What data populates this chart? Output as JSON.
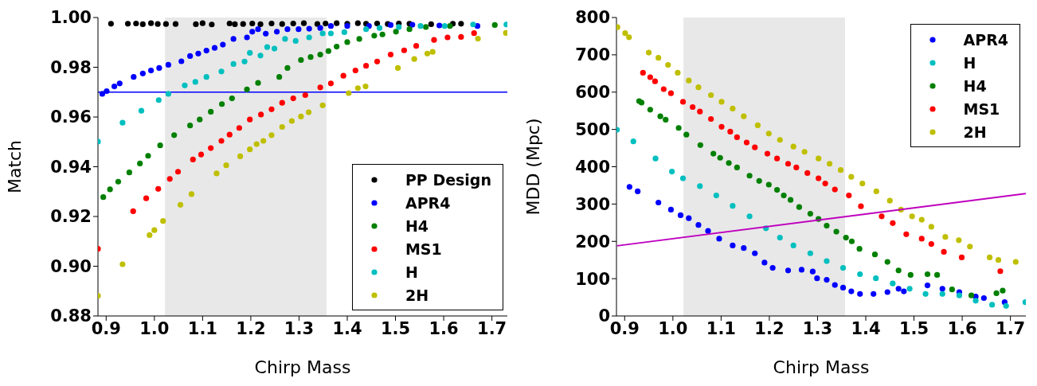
{
  "chart_data": [
    {
      "type": "scatter",
      "xlabel": "Chirp Mass",
      "ylabel": "Match",
      "marker": "circle",
      "legend": "bottom right",
      "grid": false,
      "xlim": [
        0.883,
        1.732
      ],
      "ylim": [
        0.88,
        1.0
      ],
      "xticks": [
        {
          "value": 0.9,
          "label": "0.9"
        },
        {
          "value": 1.0,
          "label": "1.0"
        },
        {
          "value": 1.1,
          "label": "1.1"
        },
        {
          "value": 1.2,
          "label": "1.2"
        },
        {
          "value": 1.3,
          "label": "1.3"
        },
        {
          "value": 1.4,
          "label": "1.4"
        },
        {
          "value": 1.5,
          "label": "1.5"
        },
        {
          "value": 1.6,
          "label": "1.6"
        },
        {
          "value": 1.7,
          "label": "1.7"
        }
      ],
      "yticks": [
        {
          "value": 0.88,
          "label": "0.88"
        },
        {
          "value": 0.9,
          "label": "0.90"
        },
        {
          "value": 0.92,
          "label": "0.92"
        },
        {
          "value": 0.94,
          "label": "0.94"
        },
        {
          "value": 0.96,
          "label": "0.96"
        },
        {
          "value": 0.98,
          "label": "0.98"
        },
        {
          "value": 1.0,
          "label": "1.00"
        }
      ],
      "bands": [
        {
          "axis": "x",
          "from": 1.022,
          "to": 1.357,
          "color": "#e8e8e8"
        }
      ],
      "ref_lines": [
        {
          "axis": "y",
          "value": 0.97,
          "color": "#0000ff"
        }
      ],
      "series": [
        {
          "name": "PP Design",
          "color": "#000000",
          "x": [
            0.91,
            0.945,
            0.962,
            0.976,
            0.993,
            1.007,
            1.024,
            1.044,
            1.086,
            1.1,
            1.119,
            1.156,
            1.167,
            1.184,
            1.203,
            1.22,
            1.243,
            1.265,
            1.288,
            1.31,
            1.338,
            1.355,
            1.378,
            1.4,
            1.422,
            1.439,
            1.462,
            1.484,
            1.507,
            1.529,
            1.574,
            1.619,
            1.636
          ],
          "values": [
            0.9975,
            0.9975,
            0.9976,
            0.9973,
            0.9977,
            0.9974,
            0.9974,
            0.9974,
            0.9973,
            0.9977,
            0.9972,
            0.9976,
            0.9973,
            0.9974,
            0.9976,
            0.9973,
            0.9976,
            0.9974,
            0.9976,
            0.9977,
            0.9974,
            0.9976,
            0.9977,
            0.9975,
            0.9977,
            0.9975,
            0.9976,
            0.9974,
            0.9976,
            0.9975,
            0.9973,
            0.9975,
            0.9975
          ]
        },
        {
          "name": "APR4",
          "color": "#0000ff",
          "x": [
            0.892,
            0.901,
            0.917,
            0.928,
            0.957,
            0.976,
            0.993,
            1.01,
            1.029,
            1.056,
            1.074,
            1.091,
            1.108,
            1.125,
            1.142,
            1.164,
            1.192,
            1.203,
            1.215,
            1.231,
            1.254,
            1.276,
            1.299,
            1.321,
            1.344,
            1.366,
            1.4,
            1.445,
            1.49,
            1.535,
            1.591,
            1.67
          ],
          "values": [
            0.9693,
            0.9704,
            0.9723,
            0.9735,
            0.9761,
            0.9775,
            0.9787,
            0.9797,
            0.981,
            0.9824,
            0.9845,
            0.9855,
            0.9867,
            0.9878,
            0.9891,
            0.9914,
            0.992,
            0.9943,
            0.9953,
            0.9935,
            0.9943,
            0.9953,
            0.9953,
            0.9955,
            0.9958,
            0.9966,
            0.9966,
            0.9966,
            0.997,
            0.9971,
            0.9968,
            0.9966
          ]
        },
        {
          "name": "H4",
          "color": "#008000",
          "x": [
            0.894,
            0.908,
            0.925,
            0.948,
            0.97,
            0.987,
            1.012,
            1.041,
            1.074,
            1.094,
            1.117,
            1.14,
            1.161,
            1.192,
            1.215,
            1.259,
            1.276,
            1.304,
            1.324,
            1.344,
            1.361,
            1.378,
            1.4,
            1.425,
            1.456,
            1.473,
            1.501,
            1.529,
            1.563,
            1.613,
            1.706
          ],
          "values": [
            0.9278,
            0.9309,
            0.934,
            0.9377,
            0.9413,
            0.9444,
            0.9486,
            0.9527,
            0.9566,
            0.959,
            0.9621,
            0.9652,
            0.9675,
            0.9711,
            0.9737,
            0.9761,
            0.9797,
            0.9829,
            0.9841,
            0.9851,
            0.9865,
            0.9883,
            0.9901,
            0.9914,
            0.9927,
            0.9932,
            0.9943,
            0.9953,
            0.9962,
            0.9966,
            0.997
          ]
        },
        {
          "name": "MS1",
          "color": "#ff0000",
          "x": [
            0.883,
            0.956,
            0.983,
            1.008,
            1.032,
            1.049,
            1.08,
            1.097,
            1.117,
            1.139,
            1.156,
            1.176,
            1.198,
            1.221,
            1.243,
            1.265,
            1.288,
            1.313,
            1.344,
            1.366,
            1.392,
            1.417,
            1.439,
            1.462,
            1.49,
            1.518,
            1.543,
            1.58,
            1.608,
            1.636,
            1.663
          ],
          "values": [
            0.907,
            0.9221,
            0.9273,
            0.9311,
            0.9351,
            0.938,
            0.9429,
            0.9449,
            0.9475,
            0.9504,
            0.9529,
            0.9556,
            0.959,
            0.961,
            0.9631,
            0.9657,
            0.9675,
            0.9688,
            0.9719,
            0.9735,
            0.9766,
            0.9787,
            0.9806,
            0.9823,
            0.9851,
            0.9868,
            0.9886,
            0.991,
            0.992,
            0.9922,
            0.9937
          ]
        },
        {
          "name": "H",
          "color": "#00bfbf",
          "x": [
            0.883,
            0.934,
            0.973,
            1.009,
            1.029,
            1.063,
            1.085,
            1.108,
            1.139,
            1.164,
            1.187,
            1.198,
            1.22,
            1.234,
            1.249,
            1.271,
            1.293,
            1.321,
            1.349,
            1.366,
            1.394,
            1.439,
            1.467,
            1.507,
            1.552,
            1.602,
            1.661,
            1.73
          ],
          "values": [
            0.9501,
            0.9577,
            0.9625,
            0.9668,
            0.9693,
            0.9727,
            0.9741,
            0.9761,
            0.9783,
            0.9813,
            0.9823,
            0.9858,
            0.9847,
            0.9881,
            0.9875,
            0.9914,
            0.9906,
            0.992,
            0.9936,
            0.9936,
            0.9941,
            0.9953,
            0.9958,
            0.9962,
            0.9966,
            0.9966,
            0.9972,
            0.9972
          ]
        },
        {
          "name": "2H",
          "color": "#bfbf00",
          "x": [
            0.883,
            0.934,
            0.99,
            1.0,
            1.018,
            1.054,
            1.077,
            1.129,
            1.149,
            1.178,
            1.198,
            1.212,
            1.226,
            1.243,
            1.265,
            1.285,
            1.304,
            1.32,
            1.349,
            1.403,
            1.422,
            1.438,
            1.505,
            1.539,
            1.566,
            1.577,
            1.671,
            1.729
          ],
          "values": [
            0.8881,
            0.9008,
            0.9125,
            0.9145,
            0.9182,
            0.9247,
            0.929,
            0.9373,
            0.9406,
            0.9442,
            0.947,
            0.9491,
            0.9504,
            0.9527,
            0.956,
            0.9584,
            0.9602,
            0.9619,
            0.9647,
            0.9696,
            0.9716,
            0.9723,
            0.9797,
            0.9833,
            0.9855,
            0.9862,
            0.9915,
            0.9938
          ]
        }
      ]
    },
    {
      "type": "scatter",
      "xlabel": "Chirp Mass",
      "ylabel": "MDD (Mpc)",
      "marker": "circle",
      "legend": "top right",
      "grid": false,
      "xlim": [
        0.883,
        1.732
      ],
      "ylim": [
        0,
        800
      ],
      "xticks": [
        {
          "value": 0.9,
          "label": "0.9"
        },
        {
          "value": 1.0,
          "label": "1.0"
        },
        {
          "value": 1.1,
          "label": "1.1"
        },
        {
          "value": 1.2,
          "label": "1.2"
        },
        {
          "value": 1.3,
          "label": "1.3"
        },
        {
          "value": 1.4,
          "label": "1.4"
        },
        {
          "value": 1.5,
          "label": "1.5"
        },
        {
          "value": 1.6,
          "label": "1.6"
        },
        {
          "value": 1.7,
          "label": "1.7"
        }
      ],
      "yticks": [
        0,
        100,
        200,
        300,
        400,
        500,
        600,
        700,
        800
      ],
      "bands": [
        {
          "axis": "x",
          "from": 1.022,
          "to": 1.357,
          "color": "#e8e8e8"
        }
      ],
      "series": [
        {
          "name": "APR4",
          "color": "#0000ff",
          "x": [
            0.91,
            0.927,
            0.97,
            0.996,
            1.016,
            1.033,
            1.053,
            1.073,
            1.096,
            1.124,
            1.147,
            1.17,
            1.19,
            1.207,
            1.239,
            1.267,
            1.29,
            1.299,
            1.319,
            1.336,
            1.353,
            1.37,
            1.388,
            1.416,
            1.445,
            1.468,
            1.479,
            1.528,
            1.559,
            1.594,
            1.628,
            1.645,
            1.688
          ],
          "values": [
            346,
            334,
            304,
            285,
            270,
            262,
            244,
            228,
            207,
            189,
            182,
            168,
            143,
            129,
            122,
            124,
            119,
            101,
            97,
            83,
            76,
            66,
            59,
            59,
            64,
            73,
            66,
            82,
            73,
            64,
            52,
            48,
            37
          ]
        },
        {
          "name": "H",
          "color": "#00bfbf",
          "x": [
            0.884,
            0.918,
            0.964,
            0.998,
            1.021,
            1.056,
            1.09,
            1.124,
            1.159,
            1.193,
            1.222,
            1.25,
            1.285,
            1.319,
            1.353,
            1.388,
            1.421,
            1.456,
            1.491,
            1.524,
            1.559,
            1.594,
            1.628,
            1.662,
            1.691,
            1.731
          ],
          "values": [
            499,
            468,
            422,
            387,
            369,
            348,
            323,
            295,
            267,
            235,
            210,
            189,
            168,
            147,
            129,
            112,
            101,
            87,
            73,
            59,
            59,
            55,
            41,
            30,
            27,
            37
          ]
        },
        {
          "name": "H4",
          "color": "#008000",
          "x": [
            0.93,
            0.935,
            0.953,
            0.974,
            0.985,
            1.012,
            1.028,
            1.057,
            1.084,
            1.098,
            1.116,
            1.133,
            1.159,
            1.179,
            1.199,
            1.216,
            1.23,
            1.244,
            1.262,
            1.285,
            1.302,
            1.319,
            1.339,
            1.359,
            1.371,
            1.387,
            1.419,
            1.445,
            1.468,
            1.493,
            1.528,
            1.548,
            1.579,
            1.619,
            1.671,
            1.684
          ],
          "values": [
            576,
            572,
            553,
            535,
            526,
            504,
            486,
            458,
            435,
            424,
            410,
            398,
            376,
            362,
            352,
            338,
            323,
            311,
            292,
            274,
            260,
            242,
            226,
            210,
            200,
            180,
            165,
            145,
            122,
            110,
            112,
            110,
            71,
            55,
            61,
            68
          ]
        },
        {
          "name": "MS1",
          "color": "#ff0000",
          "x": [
            0.938,
            0.953,
            0.963,
            0.981,
            0.996,
            1.021,
            1.041,
            1.056,
            1.079,
            1.101,
            1.119,
            1.133,
            1.153,
            1.17,
            1.196,
            1.216,
            1.239,
            1.256,
            1.279,
            1.302,
            1.316,
            1.336,
            1.365,
            1.39,
            1.433,
            1.456,
            1.484,
            1.516,
            1.536,
            1.562,
            1.599,
            1.679
          ],
          "values": [
            652,
            640,
            629,
            608,
            597,
            574,
            560,
            548,
            528,
            507,
            494,
            479,
            465,
            452,
            435,
            422,
            408,
            398,
            383,
            369,
            355,
            339,
            323,
            294,
            267,
            249,
            219,
            207,
            193,
            172,
            157,
            120
          ]
        },
        {
          "name": "2H",
          "color": "#bfbf00",
          "x": [
            0.885,
            0.901,
            0.909,
            0.95,
            0.97,
            0.99,
            1.01,
            1.033,
            1.053,
            1.079,
            1.101,
            1.124,
            1.147,
            1.176,
            1.199,
            1.222,
            1.25,
            1.273,
            1.302,
            1.325,
            1.348,
            1.37,
            1.393,
            1.422,
            1.45,
            1.473,
            1.496,
            1.516,
            1.536,
            1.565,
            1.593,
            1.616,
            1.657,
            1.675,
            1.711
          ],
          "values": [
            774,
            758,
            747,
            706,
            692,
            673,
            652,
            631,
            613,
            592,
            574,
            556,
            535,
            511,
            489,
            472,
            454,
            440,
            422,
            408,
            391,
            373,
            355,
            334,
            309,
            285,
            267,
            258,
            239,
            212,
            203,
            186,
            157,
            150,
            145
          ]
        },
        {
          "type": "line",
          "marker": "none",
          "color": "#bf00bf",
          "x": [
            0.884,
            1.732
          ],
          "values": [
            188,
            328
          ]
        }
      ]
    }
  ]
}
